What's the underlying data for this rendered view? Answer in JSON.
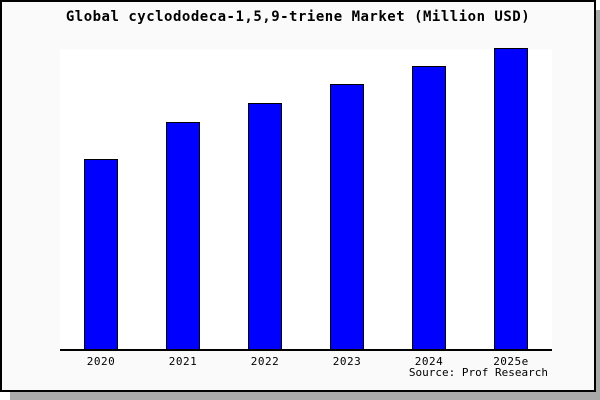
{
  "colors": {
    "bar": "#0000ff",
    "bar_border": "#000000",
    "axis": "#000000",
    "plot_background": "#ffffff",
    "frame_background": "#fafafa",
    "frame_border": "#000000",
    "shadow": "#a9a9a9",
    "text": "#000000"
  },
  "footer": {
    "source_label": "Source: Prof Research"
  },
  "chart_data": {
    "type": "bar",
    "title": "Global cyclododeca-1,5,9-triene Market (Million USD)",
    "categories": [
      "2020",
      "2021",
      "2022",
      "2023",
      "2024",
      "2025e"
    ],
    "values": [
      63.0,
      75.3,
      81.7,
      88.0,
      94.0,
      100.0
    ],
    "xlabel": "",
    "ylabel": "",
    "ylim": [
      0,
      100
    ],
    "grid": false,
    "legend": null,
    "value_scale_note": "relative index estimated from bar heights; chart displays no y-axis ticks, tallest bar (2025e) = 100"
  }
}
